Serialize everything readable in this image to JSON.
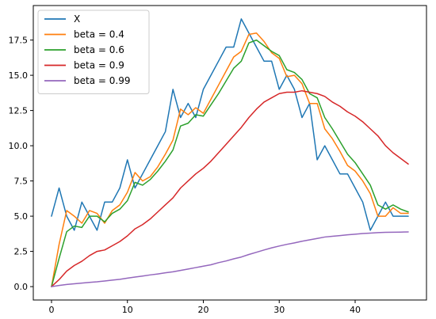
{
  "chart_data": {
    "type": "line",
    "title": "",
    "xlabel": "",
    "ylabel": "",
    "xlim": [
      -2.4,
      49.4
    ],
    "ylim": [
      -0.95,
      19.95
    ],
    "grid": false,
    "legend_position": "top-left",
    "x_ticks": [
      0,
      10,
      20,
      30,
      40
    ],
    "x_tick_labels": [
      "0",
      "10",
      "20",
      "30",
      "40"
    ],
    "y_ticks": [
      0.0,
      2.5,
      5.0,
      7.5,
      10.0,
      12.5,
      15.0,
      17.5
    ],
    "y_tick_labels": [
      "0.0",
      "2.5",
      "5.0",
      "7.5",
      "10.0",
      "12.5",
      "15.0",
      "17.5"
    ],
    "series": [
      {
        "name": "X",
        "color": "#1f77b4",
        "x": [
          0,
          1,
          2,
          3,
          4,
          5,
          6,
          7,
          8,
          9,
          10,
          11,
          12,
          13,
          14,
          15,
          16,
          17,
          18,
          19,
          20,
          21,
          22,
          23,
          24,
          25,
          26,
          27,
          28,
          29,
          30,
          31,
          32,
          33,
          34,
          35,
          36,
          37,
          38,
          39,
          40,
          41,
          42,
          43,
          44,
          45,
          46,
          47
        ],
        "y": [
          5,
          7,
          5,
          4,
          6,
          5,
          4,
          6,
          6,
          7,
          9,
          7,
          8,
          9,
          10,
          11,
          14,
          12,
          13,
          12,
          14,
          15,
          16,
          17,
          17,
          19,
          18,
          17,
          16,
          16,
          14,
          15,
          14,
          12,
          13,
          9,
          10,
          9,
          8,
          8,
          7,
          6,
          4,
          5,
          6,
          5,
          5,
          5
        ]
      },
      {
        "name": "beta = 0.4",
        "color": "#ff7f0e",
        "x": [
          0,
          1,
          2,
          3,
          4,
          5,
          6,
          7,
          8,
          9,
          10,
          11,
          12,
          13,
          14,
          15,
          16,
          17,
          18,
          19,
          20,
          21,
          22,
          23,
          24,
          25,
          26,
          27,
          28,
          29,
          30,
          31,
          32,
          33,
          34,
          35,
          36,
          37,
          38,
          39,
          40,
          41,
          42,
          43,
          44,
          45,
          46,
          47
        ],
        "y": [
          0,
          3.0,
          5.4,
          5.0,
          4.5,
          5.4,
          5.2,
          4.5,
          5.4,
          5.8,
          6.7,
          8.1,
          7.5,
          7.8,
          8.5,
          9.4,
          10.4,
          12.6,
          12.2,
          12.7,
          12.3,
          13.3,
          14.3,
          15.3,
          16.3,
          16.7,
          17.9,
          18.0,
          17.4,
          16.6,
          16.2,
          14.9,
          15.0,
          14.4,
          13.0,
          13.0,
          11.2,
          10.5,
          9.6,
          8.6,
          8.2,
          7.5,
          6.6,
          5.0,
          5.0,
          5.6,
          5.2,
          5.2
        ]
      },
      {
        "name": "beta = 0.6",
        "color": "#2ca02c",
        "x": [
          0,
          1,
          2,
          3,
          4,
          5,
          6,
          7,
          8,
          9,
          10,
          11,
          12,
          13,
          14,
          15,
          16,
          17,
          18,
          19,
          20,
          21,
          22,
          23,
          24,
          25,
          26,
          27,
          28,
          29,
          30,
          31,
          32,
          33,
          34,
          35,
          36,
          37,
          38,
          39,
          40,
          41,
          42,
          43,
          44,
          45,
          46,
          47
        ],
        "y": [
          0,
          2.0,
          3.9,
          4.3,
          4.2,
          5.0,
          5.0,
          4.6,
          5.2,
          5.5,
          6.1,
          7.4,
          7.2,
          7.6,
          8.2,
          8.9,
          9.7,
          11.4,
          11.6,
          12.2,
          12.1,
          12.9,
          13.7,
          14.6,
          15.5,
          16.0,
          17.3,
          17.5,
          17.1,
          16.7,
          16.4,
          15.4,
          15.2,
          14.7,
          13.7,
          13.4,
          12.0,
          11.2,
          10.3,
          9.4,
          8.8,
          8.0,
          7.2,
          5.8,
          5.5,
          5.8,
          5.5,
          5.3
        ]
      },
      {
        "name": "beta = 0.9",
        "color": "#d62728",
        "x": [
          0,
          1,
          2,
          3,
          4,
          5,
          6,
          7,
          8,
          9,
          10,
          11,
          12,
          13,
          14,
          15,
          16,
          17,
          18,
          19,
          20,
          21,
          22,
          23,
          24,
          25,
          26,
          27,
          28,
          29,
          30,
          31,
          32,
          33,
          34,
          35,
          36,
          37,
          38,
          39,
          40,
          41,
          42,
          43,
          44,
          45,
          46,
          47
        ],
        "y": [
          0,
          0.5,
          1.1,
          1.5,
          1.8,
          2.2,
          2.5,
          2.6,
          2.9,
          3.2,
          3.6,
          4.1,
          4.4,
          4.8,
          5.3,
          5.8,
          6.3,
          7.0,
          7.5,
          8.0,
          8.4,
          8.9,
          9.5,
          10.1,
          10.7,
          11.3,
          12.0,
          12.6,
          13.1,
          13.4,
          13.7,
          13.8,
          13.8,
          13.9,
          13.8,
          13.7,
          13.5,
          13.1,
          12.8,
          12.4,
          12.1,
          11.7,
          11.2,
          10.7,
          10.0,
          9.5,
          9.1,
          8.7
        ]
      },
      {
        "name": "beta = 0.99",
        "color": "#9467bd",
        "x": [
          0,
          1,
          2,
          3,
          4,
          5,
          6,
          7,
          8,
          9,
          10,
          11,
          12,
          13,
          14,
          15,
          16,
          17,
          18,
          19,
          20,
          21,
          22,
          23,
          24,
          25,
          26,
          27,
          28,
          29,
          30,
          31,
          32,
          33,
          34,
          35,
          36,
          37,
          38,
          39,
          40,
          41,
          42,
          43,
          44,
          45,
          46,
          47
        ],
        "y": [
          0,
          0.08,
          0.15,
          0.2,
          0.25,
          0.3,
          0.34,
          0.4,
          0.46,
          0.52,
          0.6,
          0.68,
          0.75,
          0.83,
          0.9,
          0.98,
          1.05,
          1.15,
          1.25,
          1.35,
          1.45,
          1.55,
          1.7,
          1.82,
          1.97,
          2.1,
          2.28,
          2.44,
          2.6,
          2.75,
          2.88,
          3.0,
          3.1,
          3.22,
          3.32,
          3.42,
          3.52,
          3.57,
          3.62,
          3.68,
          3.72,
          3.77,
          3.8,
          3.83,
          3.85,
          3.86,
          3.87,
          3.88
        ]
      }
    ]
  }
}
